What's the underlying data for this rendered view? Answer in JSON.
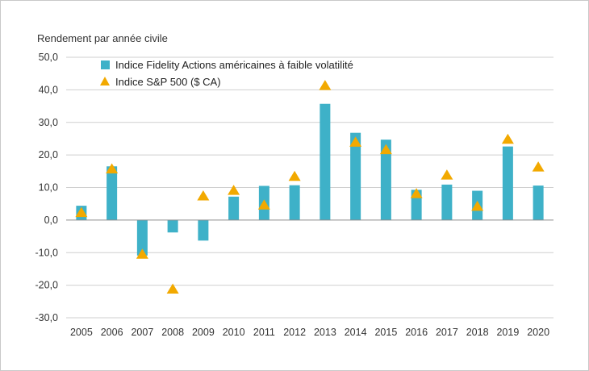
{
  "chart_data": {
    "type": "bar",
    "title": "Rendement par année civile",
    "xlabel": "",
    "ylabel": "",
    "ylim": [
      -30,
      50
    ],
    "yticks": [
      50,
      40,
      30,
      20,
      10,
      0,
      -10,
      -20,
      -30
    ],
    "ytick_labels": [
      "50,0",
      "40,0",
      "30,0",
      "20,0",
      "10,0",
      "0,0",
      "-10,0",
      "-20,0",
      "-30,0"
    ],
    "grid": true,
    "legend_position": "top-left",
    "categories": [
      "2005",
      "2006",
      "2007",
      "2008",
      "2009",
      "2010",
      "2011",
      "2012",
      "2013",
      "2014",
      "2015",
      "2016",
      "2017",
      "2018",
      "2019",
      "2020"
    ],
    "series": [
      {
        "name": "Indice Fidelity Actions américaines à faible volatilité",
        "kind": "bar",
        "color": "#3eb1c8",
        "values": [
          4.4,
          16.5,
          -10.9,
          -3.8,
          -6.3,
          7.2,
          10.5,
          10.7,
          35.7,
          26.8,
          24.7,
          9.3,
          10.9,
          9.0,
          22.6,
          10.6
        ]
      },
      {
        "name": "Indice S&P 500 ($ CA)",
        "kind": "marker",
        "marker": "triangle",
        "color": "#f2a900",
        "values": [
          2.3,
          15.7,
          -10.5,
          -21.2,
          7.4,
          9.1,
          4.6,
          13.4,
          41.3,
          23.9,
          21.6,
          8.1,
          13.8,
          4.2,
          24.8,
          16.3
        ]
      }
    ]
  }
}
